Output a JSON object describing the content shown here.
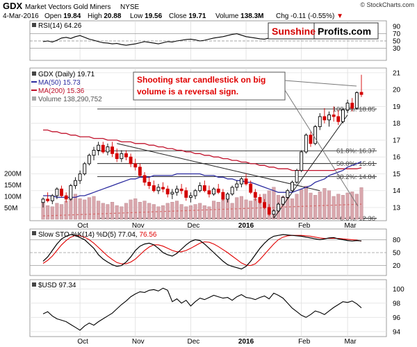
{
  "header": {
    "symbol": "GDX",
    "name": "Market Vectors Gold Miners",
    "exchange": "NYSE",
    "watermark": "© StockCharts.com",
    "date": "4-Mar-2016",
    "open_label": "Open",
    "open": "19.84",
    "high_label": "High",
    "high": "20.88",
    "low_label": "Low",
    "low": "19.56",
    "close_label": "Close",
    "close": "19.71",
    "volume_label": "Volume",
    "volume": "138.3M",
    "chg_label": "Chg",
    "chg": "-0.11 (-0.55%)",
    "chg_arrow": "▼"
  },
  "logo": {
    "part1": "Sunshine",
    "part2": "Profits.com"
  },
  "annotation": {
    "line1": "Shooting star candlestick on big",
    "line2": "volume is a reversal sign."
  },
  "colors": {
    "up": "#000000",
    "down": "#d40000",
    "up_fill": "#ffffff",
    "ma50": "#2b2b9f",
    "ma200": "#c0102a",
    "volume": "#d9a7ad",
    "annotation": "#e00000",
    "sto_signal": "#e00000"
  },
  "chart_data": [
    {
      "type": "line",
      "panel": "RSI",
      "legend": "RSI(14) 64.26",
      "ylim": [
        0,
        100
      ],
      "ticks": [
        90,
        70,
        50,
        30
      ],
      "levels": [
        70,
        50,
        30
      ],
      "values": [
        48,
        50,
        47,
        52,
        58,
        60,
        57,
        62,
        65,
        60,
        55,
        52,
        48,
        45,
        44,
        42,
        43,
        40,
        38,
        40,
        42,
        45,
        48,
        46,
        44,
        42,
        45,
        48,
        47,
        50,
        52,
        54,
        55,
        53,
        50,
        52,
        55,
        58,
        60,
        62,
        65,
        68,
        70,
        66,
        62,
        60,
        58,
        56,
        55,
        58,
        62,
        66,
        70,
        72,
        74,
        75,
        72,
        70,
        68,
        70,
        68,
        66,
        64,
        62,
        60,
        62,
        64,
        66,
        64,
        64.26
      ]
    },
    {
      "type": "candlestick",
      "panel": "Price",
      "legend": [
        {
          "label": "GDX (Daily) 19.71",
          "color": "#000000"
        },
        {
          "label": "MA(50) 15.73",
          "color": "#2b2b9f"
        },
        {
          "label": "MA(200) 15.36",
          "color": "#c0102a"
        },
        {
          "label": "Volume 138,290,752",
          "color": "#777777"
        }
      ],
      "ylim": [
        12.3,
        21.2
      ],
      "price_ticks": [
        21,
        20,
        19,
        18,
        17,
        16,
        15,
        14,
        13
      ],
      "volume_ticks": [
        "200M",
        "150M",
        "100M",
        "50M"
      ],
      "x_labels": [
        "Oct",
        "Nov",
        "Dec",
        "2016",
        "Feb",
        "Mar"
      ],
      "fib_levels": [
        {
          "label": "100.0%: 18.85",
          "value": 18.85
        },
        {
          "label": "61.8%: 16.37",
          "value": 16.37
        },
        {
          "label": "50.0%: 15.61",
          "value": 15.61
        },
        {
          "label": "38.2%: 14.84",
          "value": 14.84
        },
        {
          "label": "0.0%: 12.36",
          "value": 12.36
        }
      ],
      "candles": [
        [
          13.3,
          13.6,
          13.0,
          13.5
        ],
        [
          13.5,
          13.9,
          13.3,
          13.4
        ],
        [
          13.4,
          13.8,
          13.2,
          13.7
        ],
        [
          13.7,
          14.2,
          13.5,
          14.1
        ],
        [
          14.1,
          14.3,
          13.6,
          13.7
        ],
        [
          13.7,
          13.9,
          13.3,
          13.5
        ],
        [
          13.5,
          14.4,
          13.4,
          14.3
        ],
        [
          14.3,
          14.8,
          14.1,
          14.6
        ],
        [
          14.6,
          15.2,
          14.4,
          15.0
        ],
        [
          15.0,
          15.7,
          14.9,
          15.6
        ],
        [
          15.6,
          16.2,
          15.5,
          16.1
        ],
        [
          16.1,
          16.6,
          15.8,
          16.4
        ],
        [
          16.4,
          16.9,
          16.1,
          16.7
        ],
        [
          16.7,
          16.9,
          16.2,
          16.3
        ],
        [
          16.3,
          16.8,
          16.1,
          16.6
        ],
        [
          16.6,
          16.9,
          16.0,
          16.2
        ],
        [
          16.2,
          16.5,
          15.7,
          15.9
        ],
        [
          15.9,
          16.4,
          15.7,
          16.2
        ],
        [
          16.2,
          16.4,
          15.8,
          16.0
        ],
        [
          16.0,
          16.2,
          15.4,
          15.6
        ],
        [
          15.6,
          15.9,
          15.2,
          15.4
        ],
        [
          15.4,
          15.6,
          14.8,
          14.9
        ],
        [
          14.9,
          15.1,
          14.3,
          14.5
        ],
        [
          14.5,
          14.8,
          14.1,
          14.3
        ],
        [
          14.3,
          14.6,
          13.9,
          14.0
        ],
        [
          14.0,
          14.4,
          13.8,
          14.2
        ],
        [
          14.2,
          14.5,
          13.9,
          14.1
        ],
        [
          14.1,
          14.3,
          13.6,
          13.8
        ],
        [
          13.8,
          14.1,
          13.5,
          13.9
        ],
        [
          13.9,
          14.3,
          13.7,
          14.1
        ],
        [
          14.1,
          14.4,
          13.8,
          14.0
        ],
        [
          14.0,
          14.2,
          13.4,
          13.6
        ],
        [
          13.6,
          13.9,
          13.3,
          13.7
        ],
        [
          13.7,
          14.1,
          13.5,
          14.0
        ],
        [
          14.0,
          14.5,
          13.9,
          14.3
        ],
        [
          14.3,
          14.6,
          13.9,
          14.0
        ],
        [
          14.0,
          14.3,
          13.6,
          13.8
        ],
        [
          13.8,
          14.2,
          13.7,
          14.1
        ],
        [
          14.1,
          14.4,
          13.8,
          13.9
        ],
        [
          13.9,
          14.1,
          13.4,
          13.5
        ],
        [
          13.5,
          13.9,
          13.3,
          13.8
        ],
        [
          13.8,
          14.3,
          13.7,
          14.2
        ],
        [
          14.2,
          14.6,
          14.0,
          14.4
        ],
        [
          14.4,
          14.8,
          14.2,
          14.7
        ],
        [
          14.7,
          15.0,
          14.3,
          14.4
        ],
        [
          14.4,
          14.6,
          13.8,
          13.9
        ],
        [
          13.9,
          14.1,
          13.4,
          13.6
        ],
        [
          13.6,
          13.8,
          13.2,
          13.3
        ],
        [
          13.3,
          13.5,
          12.9,
          13.0
        ],
        [
          13.0,
          13.2,
          12.5,
          12.6
        ],
        [
          12.6,
          12.9,
          12.36,
          12.8
        ],
        [
          12.8,
          13.3,
          12.7,
          13.2
        ],
        [
          13.2,
          13.7,
          13.1,
          13.6
        ],
        [
          13.6,
          14.1,
          13.5,
          14.0
        ],
        [
          14.0,
          14.6,
          13.9,
          14.5
        ],
        [
          14.5,
          15.3,
          14.4,
          15.2
        ],
        [
          15.2,
          16.4,
          15.1,
          16.3
        ],
        [
          16.3,
          17.4,
          16.2,
          17.3
        ],
        [
          17.3,
          17.5,
          16.6,
          16.8
        ],
        [
          16.8,
          17.9,
          16.7,
          17.8
        ],
        [
          17.8,
          18.6,
          17.6,
          18.4
        ],
        [
          18.4,
          18.9,
          18.0,
          18.2
        ],
        [
          18.2,
          18.7,
          17.8,
          18.5
        ],
        [
          18.5,
          19.0,
          18.1,
          18.4
        ],
        [
          18.4,
          18.8,
          17.9,
          18.1
        ],
        [
          18.1,
          18.9,
          18.0,
          18.8
        ],
        [
          18.8,
          19.4,
          18.6,
          19.2
        ],
        [
          19.2,
          19.5,
          18.7,
          18.9
        ],
        [
          18.9,
          19.9,
          18.8,
          19.82
        ],
        [
          19.84,
          20.88,
          19.56,
          19.71
        ]
      ],
      "ma50": [
        13.7,
        13.7,
        13.7,
        13.6,
        13.6,
        13.6,
        13.6,
        13.6,
        13.7,
        13.7,
        13.8,
        13.9,
        14.0,
        14.1,
        14.2,
        14.3,
        14.4,
        14.5,
        14.6,
        14.7,
        14.7,
        14.8,
        14.8,
        14.8,
        14.9,
        14.9,
        14.9,
        14.9,
        14.9,
        15.0,
        15.0,
        15.0,
        15.0,
        15.0,
        15.0,
        14.9,
        14.9,
        14.9,
        14.8,
        14.8,
        14.7,
        14.7,
        14.6,
        14.6,
        14.5,
        14.5,
        14.4,
        14.3,
        14.2,
        14.1,
        14.0,
        13.9,
        13.9,
        13.9,
        13.9,
        14.0,
        14.1,
        14.2,
        14.3,
        14.5,
        14.6,
        14.7,
        14.9,
        15.0,
        15.1,
        15.2,
        15.4,
        15.5,
        15.6,
        15.73
      ],
      "ma200": [
        17.6,
        17.6,
        17.5,
        17.5,
        17.4,
        17.4,
        17.3,
        17.3,
        17.2,
        17.2,
        17.2,
        17.1,
        17.1,
        17.1,
        17.0,
        17.0,
        17.0,
        16.9,
        16.9,
        16.9,
        16.8,
        16.8,
        16.8,
        16.7,
        16.7,
        16.6,
        16.6,
        16.5,
        16.5,
        16.4,
        16.4,
        16.3,
        16.3,
        16.2,
        16.2,
        16.1,
        16.1,
        16.0,
        16.0,
        15.9,
        15.9,
        15.8,
        15.8,
        15.7,
        15.7,
        15.6,
        15.6,
        15.5,
        15.5,
        15.4,
        15.4,
        15.3,
        15.3,
        15.3,
        15.2,
        15.2,
        15.2,
        15.2,
        15.2,
        15.2,
        15.2,
        15.2,
        15.2,
        15.2,
        15.3,
        15.3,
        15.3,
        15.3,
        15.3,
        15.36
      ],
      "volume_m": [
        75,
        60,
        55,
        70,
        65,
        80,
        95,
        110,
        90,
        85,
        95,
        100,
        80,
        70,
        65,
        75,
        60,
        55,
        70,
        85,
        90,
        75,
        80,
        70,
        65,
        55,
        60,
        70,
        75,
        80,
        65,
        55,
        60,
        65,
        70,
        60,
        55,
        80,
        75,
        90,
        85,
        70,
        95,
        100,
        85,
        80,
        90,
        95,
        110,
        125,
        140,
        105,
        100,
        95,
        90,
        110,
        130,
        145,
        115,
        105,
        120,
        135,
        125,
        100,
        110,
        105,
        115,
        120,
        110,
        138.3
      ]
    },
    {
      "type": "line",
      "panel": "Slow STO",
      "legend_main": "Slow STO %K(14) %D(5) 77.04,",
      "legend_signal": "76.56",
      "ylim": [
        0,
        100
      ],
      "ticks": [
        80,
        50,
        20
      ],
      "levels": [
        80,
        50,
        20
      ],
      "series": [
        {
          "name": "%K(14)",
          "values": [
            30,
            40,
            55,
            70,
            82,
            88,
            92,
            90,
            85,
            80,
            70,
            60,
            45,
            35,
            28,
            22,
            18,
            20,
            28,
            40,
            55,
            65,
            70,
            72,
            68,
            60,
            50,
            45,
            42,
            48,
            58,
            68,
            76,
            80,
            78,
            70,
            60,
            50,
            40,
            30,
            22,
            18,
            15,
            12,
            18,
            30,
            45,
            60,
            72,
            82,
            88,
            90,
            92,
            91,
            90,
            89,
            88,
            86,
            84,
            82,
            80,
            82,
            84,
            85,
            82,
            80,
            78,
            77,
            78,
            77.04
          ]
        },
        {
          "name": "%D(5)",
          "values": [
            25,
            32,
            42,
            55,
            68,
            78,
            86,
            90,
            89,
            86,
            80,
            72,
            62,
            52,
            42,
            34,
            27,
            24,
            24,
            28,
            35,
            45,
            55,
            63,
            68,
            68,
            65,
            60,
            55,
            52,
            52,
            55,
            60,
            66,
            72,
            75,
            74,
            70,
            64,
            57,
            50,
            42,
            34,
            26,
            21,
            20,
            24,
            34,
            46,
            58,
            70,
            80,
            86,
            89,
            90,
            90,
            90,
            89,
            88,
            86,
            84,
            83,
            83,
            83,
            83,
            82,
            81,
            80,
            79,
            76.56
          ]
        }
      ]
    },
    {
      "type": "line",
      "panel": "$USD",
      "legend": "$USD 97.34",
      "ylim": [
        93.5,
        101
      ],
      "ticks": [
        100,
        98,
        96,
        94
      ],
      "values": [
        96.5,
        96.8,
        96.2,
        95.8,
        95.6,
        95.4,
        95.0,
        94.6,
        94.2,
        94.8,
        95.2,
        94.9,
        95.4,
        95.8,
        96.2,
        96.6,
        97.2,
        97.8,
        98.3,
        98.9,
        99.3,
        99.6,
        99.5,
        99.8,
        99.9,
        99.7,
        100.1,
        99.8,
        98.2,
        98.6,
        98.0,
        98.4,
        97.6,
        98.2,
        98.7,
        98.5,
        98.8,
        99.1,
        98.9,
        98.7,
        98.8,
        98.4,
        98.9,
        99.2,
        98.8,
        98.7,
        98.5,
        98.8,
        99.0,
        98.6,
        99.4,
        99.1,
        98.7,
        98.0,
        97.3,
        96.8,
        96.3,
        96.0,
        96.4,
        96.9,
        96.7,
        96.4,
        96.9,
        97.4,
        97.8,
        98.2,
        98.1,
        98.3,
        97.9,
        97.34
      ]
    }
  ]
}
